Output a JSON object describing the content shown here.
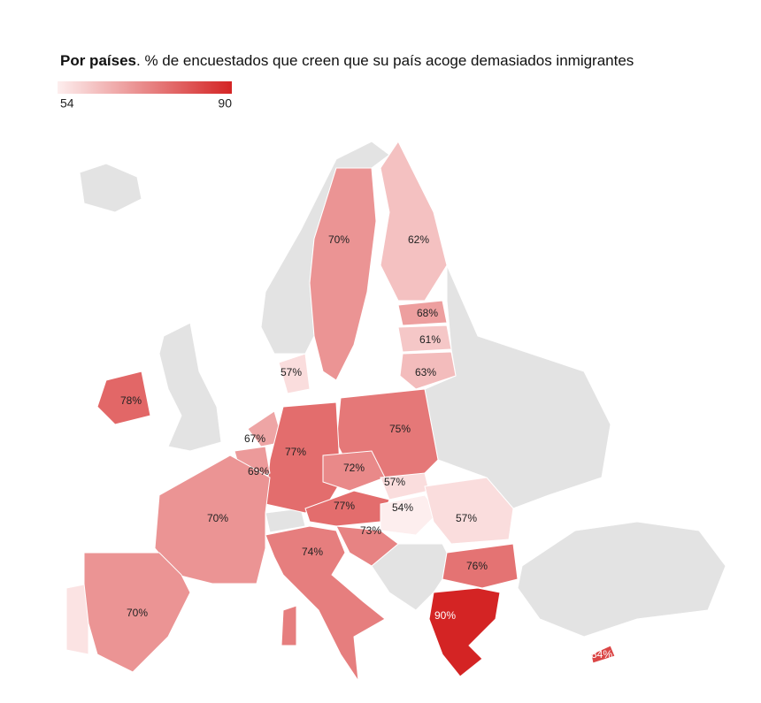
{
  "chart_data": {
    "type": "choropleth",
    "title_bold": "Por países",
    "title": ". % de encuestados que creen que su país acoge demasiados inmigrantes",
    "colorbar": {
      "min": 54,
      "max": 90,
      "colors": [
        "#fdeeee",
        "#d42424"
      ]
    },
    "values": [
      70,
      62,
      68,
      61,
      63,
      57,
      78,
      75,
      67,
      77,
      69,
      72,
      57,
      70,
      77,
      54,
      57,
      73,
      74,
      76,
      70,
      90,
      84
    ],
    "value_labels": [
      "70%",
      "62%",
      "68%",
      "61%",
      "63%",
      "57%",
      "78%",
      "75%",
      "67%",
      "77%",
      "69%",
      "72%",
      "57%",
      "70%",
      "77%",
      "54%",
      "57%",
      "73%",
      "74%",
      "76%",
      "70%",
      "90%",
      "84%"
    ]
  }
}
